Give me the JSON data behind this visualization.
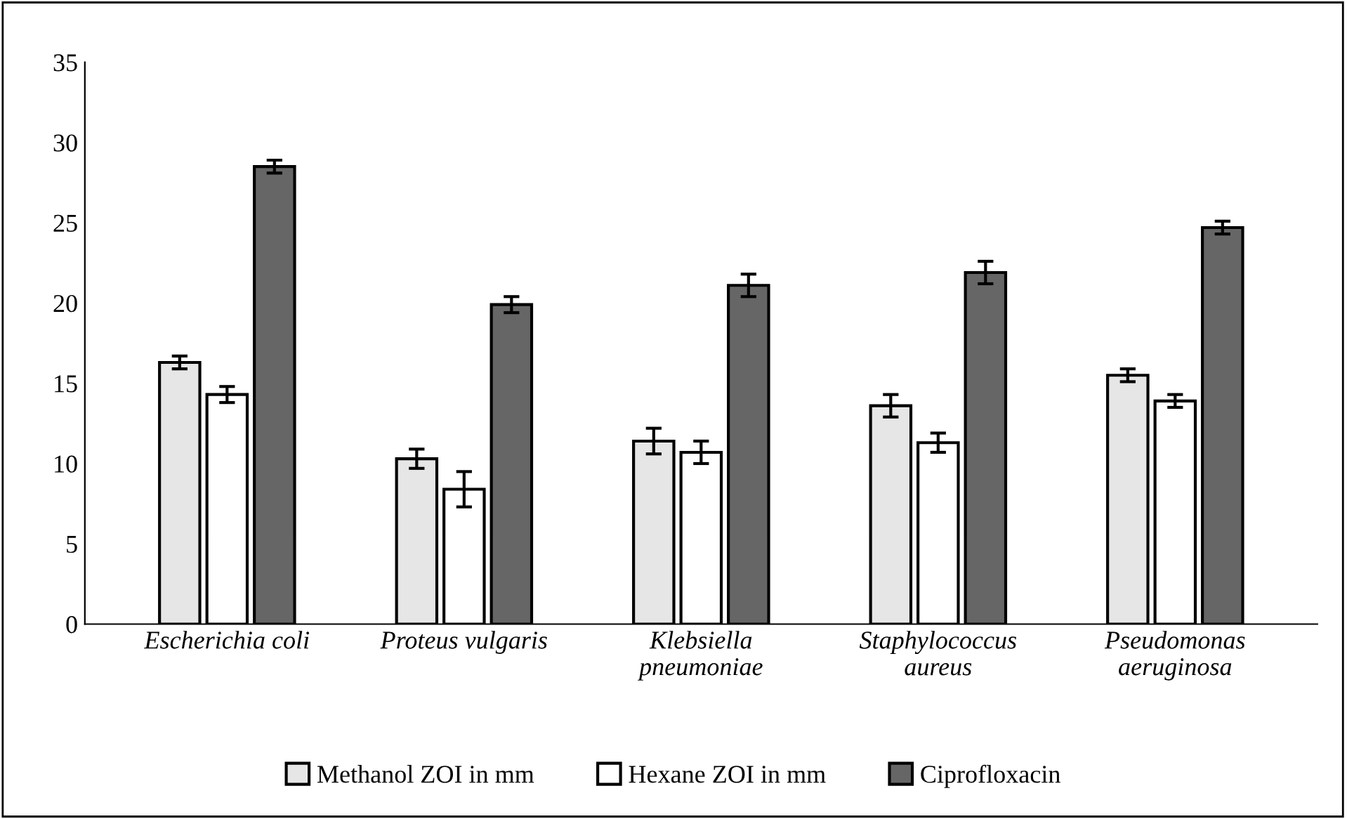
{
  "chart_data": {
    "type": "bar",
    "categories": [
      "Escherichia coli",
      "Proteus vulgaris",
      "Klebsiella\npneumoniae",
      "Staphylococcus\naureus",
      "Pseudomonas\naeruginosa"
    ],
    "series": [
      {
        "name": "Methanol ZOI in mm",
        "color": "#e6e6e6",
        "values": [
          16.3,
          10.3,
          11.4,
          13.6,
          15.5
        ],
        "errors": [
          0.4,
          0.6,
          0.8,
          0.7,
          0.4
        ]
      },
      {
        "name": "Hexane ZOI in mm",
        "color": "#ffffff",
        "values": [
          14.3,
          8.4,
          10.7,
          11.3,
          13.9
        ],
        "errors": [
          0.5,
          1.1,
          0.7,
          0.6,
          0.4
        ]
      },
      {
        "name": "Ciprofloxacin",
        "color": "#666666",
        "values": [
          28.5,
          19.9,
          21.1,
          21.9,
          24.7
        ],
        "errors": [
          0.4,
          0.5,
          0.7,
          0.7,
          0.4
        ]
      }
    ],
    "ylim": [
      0,
      35
    ],
    "yticks": [
      0,
      5,
      10,
      15,
      20,
      25,
      30,
      35
    ],
    "grid": false,
    "legend": "bottom"
  }
}
